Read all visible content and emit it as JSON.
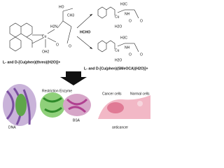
{
  "reactant": {
    "label": "L- and D-[Cu(phen)(threo)(H2O)]+",
    "atoms": [
      "HO",
      "CH3",
      "H2N",
      "Cu",
      "OH2",
      "O",
      "O"
    ]
  },
  "reagent": "HCHO",
  "products": [
    {
      "atoms": [
        "H3C",
        "NH",
        "Cu",
        "O",
        "H2O",
        "O"
      ]
    },
    {
      "atoms": [
        "H3C",
        "NH",
        "Cu",
        "O",
        "H2O",
        "O"
      ]
    }
  ],
  "product_label": "L- and D-[Cu(phen)(SMeOCA)(H2O)]+",
  "applications": {
    "dna": "DNA",
    "enzyme": "Restriction Enzyme",
    "bsa": "BSA",
    "anticancer": "anticancer",
    "cancer_cells": "Cancer cells",
    "normal_cells": "Normal cells"
  }
}
